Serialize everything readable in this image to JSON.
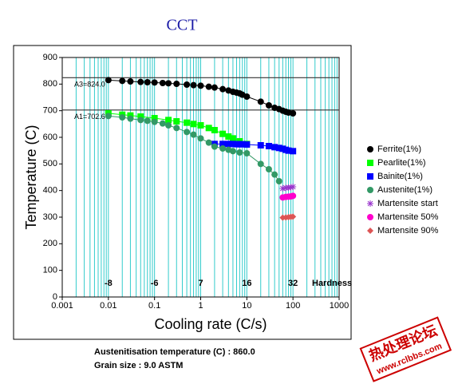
{
  "chart_data": {
    "type": "scatter",
    "title": "CCT",
    "x_label": "Cooling rate (C/s)",
    "y_label": "Temperature (C)",
    "xscale": "log",
    "xlim": [
      0.001,
      1000
    ],
    "xticks": [
      0.001,
      0.01,
      0.1,
      1,
      10,
      100,
      1000
    ],
    "ylim": [
      0,
      900
    ],
    "yticks": [
      0,
      100,
      200,
      300,
      400,
      500,
      600,
      700,
      800,
      900
    ],
    "grid": true,
    "grid_color": "#33cccc",
    "legend": "right",
    "ref_lines": [
      {
        "label": "A3=824.0",
        "value": 824.0
      },
      {
        "label": "A1=702.6",
        "value": 702.6
      }
    ],
    "hardness": {
      "title": "Hardness",
      "x": [
        0.01,
        0.1,
        1,
        10,
        100
      ],
      "values": [
        -8,
        -6,
        7,
        16,
        32
      ],
      "y": 50
    },
    "series": [
      {
        "name": "Ferrite(1%)",
        "color": "#000000",
        "marker": "circle",
        "x": [
          0.01,
          0.02,
          0.03,
          0.05,
          0.07,
          0.1,
          0.15,
          0.2,
          0.3,
          0.5,
          0.7,
          1,
          1.5,
          2,
          3,
          4,
          5,
          6,
          7,
          8,
          10,
          20,
          30,
          40,
          50,
          60,
          70,
          80,
          100
        ],
        "values": [
          815,
          812,
          810,
          808,
          807,
          806,
          804,
          803,
          801,
          798,
          796,
          794,
          790,
          787,
          781,
          776,
          771,
          768,
          765,
          760,
          753,
          734,
          720,
          711,
          706,
          700,
          696,
          693,
          690
        ]
      },
      {
        "name": "Pearlite(1%)",
        "color": "#00ff00",
        "marker": "square",
        "x": [
          0.01,
          0.02,
          0.03,
          0.05,
          0.1,
          0.2,
          0.3,
          0.5,
          0.7,
          1,
          1.5,
          2,
          3,
          4,
          5,
          7,
          10
        ],
        "values": [
          690,
          685,
          682,
          678,
          672,
          665,
          660,
          655,
          650,
          645,
          635,
          627,
          613,
          603,
          596,
          585,
          575
        ]
      },
      {
        "name": "Bainite(1%)",
        "color": "#0000ff",
        "marker": "square",
        "x": [
          2,
          3,
          4,
          5,
          6,
          7,
          8,
          10,
          20,
          30,
          40,
          50,
          60,
          70,
          80,
          100
        ],
        "values": [
          575,
          575,
          575,
          575,
          574,
          574,
          574,
          573,
          570,
          567,
          563,
          560,
          557,
          553,
          550,
          548
        ]
      },
      {
        "name": "Austenite(1%)",
        "color": "#339966",
        "marker": "circle",
        "x": [
          0.01,
          0.02,
          0.03,
          0.05,
          0.07,
          0.1,
          0.15,
          0.2,
          0.3,
          0.5,
          0.7,
          1,
          1.5,
          2,
          3,
          4,
          5,
          7,
          10,
          20,
          30,
          40,
          50
        ],
        "values": [
          680,
          675,
          670,
          665,
          662,
          658,
          652,
          645,
          635,
          620,
          610,
          596,
          580,
          565,
          558,
          553,
          548,
          543,
          540,
          500,
          480,
          460,
          435
        ]
      },
      {
        "name": "Martensite start",
        "color": "#9933cc",
        "marker": "asterisk",
        "x": [
          60,
          70,
          80,
          90,
          100
        ],
        "values": [
          408,
          410,
          411,
          412,
          414
        ]
      },
      {
        "name": "Martensite 50%",
        "color": "#ff00cc",
        "marker": "circle",
        "x": [
          60,
          70,
          80,
          90,
          100
        ],
        "values": [
          374,
          376,
          377,
          378,
          380
        ]
      },
      {
        "name": "Martensite 90%",
        "color": "#dd5555",
        "marker": "diamond",
        "x": [
          60,
          70,
          80,
          90,
          100
        ],
        "values": [
          298,
          299,
          300,
          301,
          302
        ]
      }
    ]
  },
  "footer": {
    "austenitisation": "Austenitisation temperature (C) : 860.0",
    "grain_size": "Grain size : 9.0 ASTM"
  },
  "watermark": {
    "title": "热处理论坛",
    "url": "www.rclbbs.com"
  }
}
